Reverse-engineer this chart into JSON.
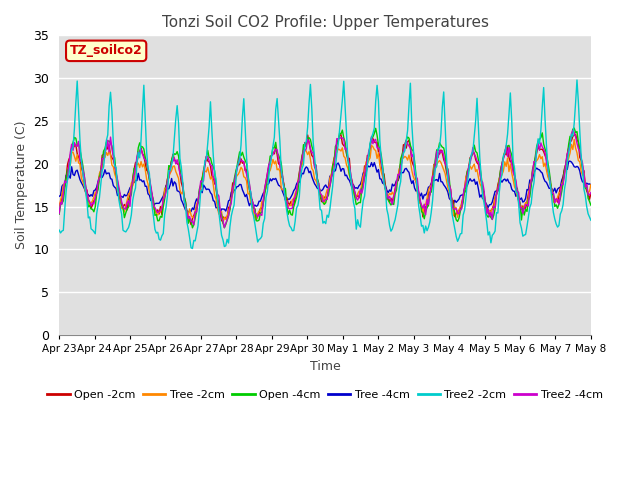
{
  "title": "Tonzi Soil CO2 Profile: Upper Temperatures",
  "ylabel": "Soil Temperature (C)",
  "xlabel": "Time",
  "ylim": [
    0,
    35
  ],
  "yticks": [
    0,
    5,
    10,
    15,
    20,
    25,
    30,
    35
  ],
  "legend_label": "TZ_soilco2",
  "series_labels": [
    "Open -2cm",
    "Tree -2cm",
    "Open -4cm",
    "Tree -4cm",
    "Tree2 -2cm",
    "Tree2 -4cm"
  ],
  "series_colors": [
    "#cc0000",
    "#ff8800",
    "#00cc00",
    "#0000cc",
    "#00cccc",
    "#cc00cc"
  ],
  "plot_bg_color": "#e0e0e0",
  "x_tick_labels": [
    "Apr 23",
    "Apr 24",
    "Apr 25",
    "Apr 26",
    "Apr 27",
    "Apr 28",
    "Apr 29",
    "Apr 30",
    "May 1",
    "May 2",
    "May 3",
    "May 4",
    "May 5",
    "May 6",
    "May 7",
    "May 8"
  ],
  "num_points": 384
}
